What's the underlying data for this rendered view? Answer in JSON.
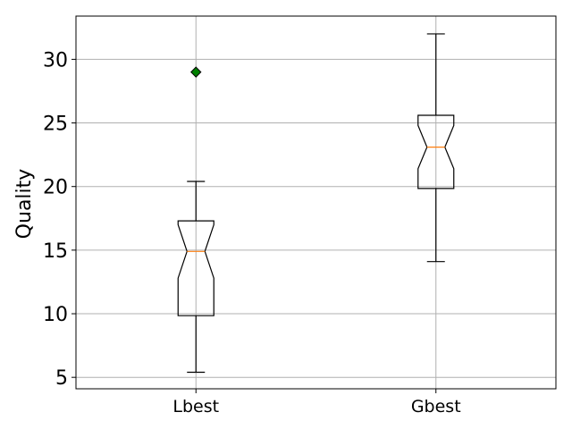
{
  "chart_data": {
    "type": "boxplot",
    "title": "",
    "xlabel": "",
    "ylabel": "Quality",
    "ylim": [
      4.1,
      33.4
    ],
    "yticks": [
      5,
      10,
      15,
      20,
      25,
      30
    ],
    "grid": true,
    "notched": true,
    "categories": [
      "Lbest",
      "Gbest"
    ],
    "boxes": [
      {
        "name": "Lbest",
        "whisker_low": 5.4,
        "q1": 9.85,
        "median": 14.9,
        "q3": 17.3,
        "whisker_high": 20.4,
        "notch_low": 12.8,
        "notch_high": 17.0,
        "outliers": [
          29.0
        ]
      },
      {
        "name": "Gbest",
        "whisker_low": 14.1,
        "q1": 19.85,
        "median": 23.1,
        "q3": 25.6,
        "whisker_high": 32.0,
        "notch_low": 21.4,
        "notch_high": 24.8,
        "outliers": []
      }
    ],
    "colors": {
      "box": "#000000",
      "median": "#ff7f0e",
      "outlier": "#008000",
      "grid": "#b0b0b0"
    }
  }
}
